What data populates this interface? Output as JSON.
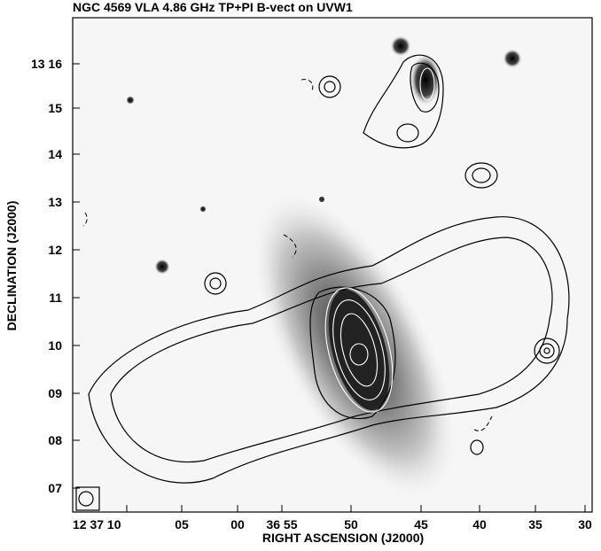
{
  "title": "NGC 4569 VLA 4.86 GHz TP+PI B-vect on UVW1",
  "x_axis": {
    "label": "RIGHT ASCENSION (J2000)",
    "ticks": [
      "12 37 10",
      "05",
      "00",
      "36 55",
      "50",
      "45",
      "40",
      "35",
      "30"
    ]
  },
  "y_axis": {
    "label": "DECLINATION (J2000)",
    "ticks": [
      "13 16",
      "15",
      "14",
      "13",
      "12",
      "11",
      "10",
      "09",
      "08",
      "07"
    ]
  }
}
